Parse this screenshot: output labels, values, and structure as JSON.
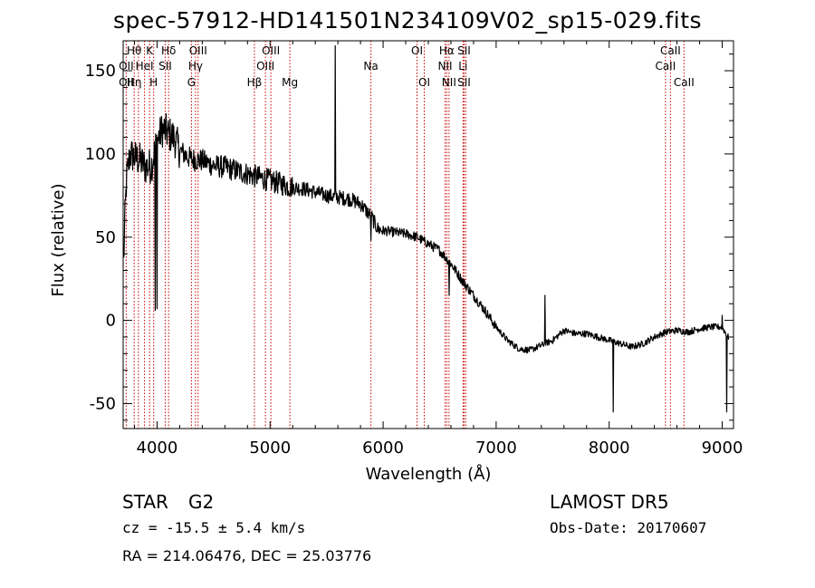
{
  "title": "spec-57912-HD141501N234109V02_sp15-029.fits",
  "info": {
    "class_label": "STAR",
    "subclass": "G2",
    "survey": "LAMOST DR5",
    "cz": "cz = -15.5 ± 5.4 km/s",
    "obs_date": "Obs-Date: 20170607",
    "coords": "RA = 214.06476, DEC =  25.03776"
  },
  "colors": {
    "spectrum": "#000000",
    "line_marker": "#cc0000",
    "axis": "#000000"
  },
  "chart_data": {
    "type": "line",
    "xlabel": "Wavelength (Å)",
    "ylabel": "Flux (relative)",
    "xlim": [
      3700,
      9100
    ],
    "ylim": [
      -65,
      168
    ],
    "x_ticks": [
      4000,
      5000,
      6000,
      7000,
      8000,
      9000
    ],
    "y_ticks": [
      -50,
      0,
      50,
      100,
      150
    ],
    "x_tick_labels": [
      "4000",
      "5000",
      "6000",
      "7000",
      "8000",
      "9000"
    ],
    "y_tick_labels": [
      "-50",
      "0",
      "50",
      "100",
      "150"
    ],
    "spectrum_anchor_points": [
      [
        3700,
        25
      ],
      [
        3715,
        60
      ],
      [
        3730,
        85
      ],
      [
        3760,
        100
      ],
      [
        3800,
        98
      ],
      [
        3850,
        96
      ],
      [
        3900,
        92
      ],
      [
        3950,
        93
      ],
      [
        4000,
        108
      ],
      [
        4050,
        115
      ],
      [
        4100,
        112
      ],
      [
        4150,
        110
      ],
      [
        4200,
        102
      ],
      [
        4300,
        97
      ],
      [
        4400,
        96
      ],
      [
        4500,
        93
      ],
      [
        4600,
        92
      ],
      [
        4700,
        90
      ],
      [
        4800,
        88
      ],
      [
        4900,
        86
      ],
      [
        5000,
        84
      ],
      [
        5100,
        82
      ],
      [
        5200,
        80
      ],
      [
        5300,
        79
      ],
      [
        5400,
        77
      ],
      [
        5500,
        75
      ],
      [
        5600,
        74
      ],
      [
        5700,
        73
      ],
      [
        5800,
        70
      ],
      [
        5900,
        62
      ],
      [
        5950,
        55
      ],
      [
        6000,
        54
      ],
      [
        6100,
        53
      ],
      [
        6200,
        52
      ],
      [
        6300,
        50
      ],
      [
        6400,
        46
      ],
      [
        6500,
        42
      ],
      [
        6600,
        34
      ],
      [
        6700,
        24
      ],
      [
        6800,
        15
      ],
      [
        6900,
        6
      ],
      [
        7000,
        -4
      ],
      [
        7100,
        -12
      ],
      [
        7200,
        -17
      ],
      [
        7300,
        -18
      ],
      [
        7400,
        -15
      ],
      [
        7500,
        -12
      ],
      [
        7600,
        -6
      ],
      [
        7700,
        -8
      ],
      [
        7800,
        -8
      ],
      [
        7900,
        -10
      ],
      [
        8000,
        -12
      ],
      [
        8100,
        -14
      ],
      [
        8200,
        -16
      ],
      [
        8300,
        -14
      ],
      [
        8400,
        -10
      ],
      [
        8500,
        -7
      ],
      [
        8600,
        -6
      ],
      [
        8700,
        -7
      ],
      [
        8800,
        -5
      ],
      [
        8900,
        -4
      ],
      [
        9000,
        -4
      ],
      [
        9050,
        -10
      ]
    ],
    "spikes": [
      {
        "x": 3985,
        "y": 6
      },
      {
        "x": 4000,
        "y": 7
      },
      {
        "x": 5577,
        "y": 165
      },
      {
        "x": 5890,
        "y": 48
      },
      {
        "x": 6583,
        "y": 15
      },
      {
        "x": 7430,
        "y": 15
      },
      {
        "x": 8035,
        "y": -55
      },
      {
        "x": 9000,
        "y": 3
      },
      {
        "x": 9040,
        "y": -55
      },
      {
        "x": 3700,
        "y": 0
      }
    ],
    "line_markers": [
      {
        "x": 3727,
        "labels": [
          "",
          "OII",
          "OII"
        ]
      },
      {
        "x": 3798,
        "labels": [
          "Hθ",
          "",
          "Hη"
        ]
      },
      {
        "x": 3835,
        "labels": [
          "",
          "",
          ""
        ]
      },
      {
        "x": 3889,
        "labels": [
          "",
          "HeI",
          ""
        ]
      },
      {
        "x": 3934,
        "labels": [
          "K",
          "",
          ""
        ]
      },
      {
        "x": 3970,
        "labels": [
          "",
          "",
          "H"
        ]
      },
      {
        "x": 4072,
        "labels": [
          "",
          "SII",
          ""
        ]
      },
      {
        "x": 4102,
        "labels": [
          "Hδ",
          "",
          ""
        ]
      },
      {
        "x": 4304,
        "labels": [
          "",
          "",
          "G"
        ]
      },
      {
        "x": 4340,
        "labels": [
          "",
          "Hγ",
          ""
        ]
      },
      {
        "x": 4363,
        "labels": [
          "OIII",
          "",
          ""
        ]
      },
      {
        "x": 4861,
        "labels": [
          "",
          "",
          "Hβ"
        ]
      },
      {
        "x": 4959,
        "labels": [
          "",
          "OIII",
          ""
        ]
      },
      {
        "x": 5007,
        "labels": [
          "OIII",
          "",
          ""
        ]
      },
      {
        "x": 5175,
        "labels": [
          "",
          "",
          "Mg"
        ]
      },
      {
        "x": 5892,
        "labels": [
          "",
          "Na",
          ""
        ]
      },
      {
        "x": 6300,
        "labels": [
          "OI",
          "",
          ""
        ]
      },
      {
        "x": 6364,
        "labels": [
          "",
          "",
          "OI"
        ]
      },
      {
        "x": 6548,
        "labels": [
          "",
          "NII",
          ""
        ]
      },
      {
        "x": 6563,
        "labels": [
          "Hα",
          "",
          ""
        ]
      },
      {
        "x": 6583,
        "labels": [
          "",
          "",
          "NII"
        ]
      },
      {
        "x": 6707,
        "labels": [
          "",
          "Li",
          ""
        ]
      },
      {
        "x": 6716,
        "labels": [
          "SII",
          "",
          "SII"
        ]
      },
      {
        "x": 6731,
        "labels": [
          "",
          "",
          ""
        ]
      },
      {
        "x": 8498,
        "labels": [
          "",
          "CaII",
          ""
        ]
      },
      {
        "x": 8542,
        "labels": [
          "CaII",
          "",
          ""
        ]
      },
      {
        "x": 8662,
        "labels": [
          "",
          "",
          "CaII"
        ]
      }
    ]
  }
}
